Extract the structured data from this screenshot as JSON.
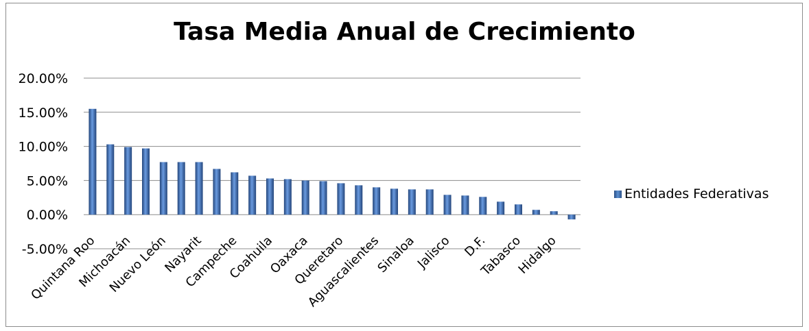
{
  "chart_data": {
    "type": "bar",
    "title": "Tasa Media Anual de Crecimiento",
    "xlabel": "",
    "ylabel": "",
    "ylim": [
      -0.05,
      0.2
    ],
    "yticks": [
      "-5.00%",
      "0.00%",
      "5.00%",
      "10.00%",
      "15.00%",
      "20.00%"
    ],
    "ytick_values": [
      -0.05,
      0,
      0.05,
      0.1,
      0.15,
      0.2
    ],
    "grid": true,
    "legend_position": "right",
    "series": [
      {
        "name": "Entidades Federativas",
        "color": "#4a7cc0",
        "values": [
          0.155,
          0.103,
          0.099,
          0.097,
          0.077,
          0.077,
          0.077,
          0.067,
          0.062,
          0.057,
          0.053,
          0.052,
          0.05,
          0.049,
          0.046,
          0.043,
          0.04,
          0.038,
          0.037,
          0.037,
          0.029,
          0.028,
          0.026,
          0.019,
          0.015,
          0.007,
          0.005,
          -0.007
        ]
      }
    ],
    "category_labels": [
      "Quintana Roo",
      "",
      "Michoacán",
      "",
      "Nuevo León",
      "",
      "Nayarit",
      "",
      "Campeche",
      "",
      "Coahuila",
      "",
      "Oaxaca",
      "",
      "Queretaro",
      "",
      "Aguascalientes",
      "",
      "Sinaloa",
      "",
      "Jalisco",
      "",
      "D.F.",
      "",
      "Tabasco",
      "",
      "Hidalgo",
      ""
    ]
  },
  "legend": {
    "label": "Entidades Federativas"
  }
}
